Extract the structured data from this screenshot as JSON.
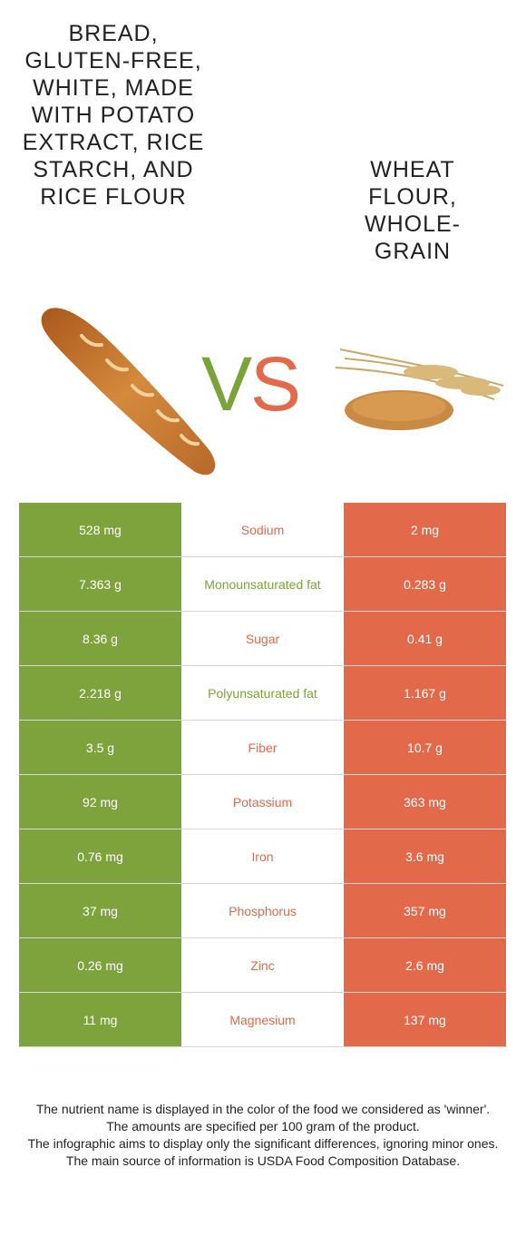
{
  "titles": {
    "left": "BREAD, GLUTEN-FREE, WHITE, MADE WITH POTATO EXTRACT, RICE STARCH, AND RICE FLOUR",
    "right": "WHEAT FLOUR, WHOLE-GRAIN"
  },
  "vs": {
    "v": "V",
    "s": "S"
  },
  "colors": {
    "left": "#7ea33c",
    "right": "#e2694a"
  },
  "rows": [
    {
      "left": "528 mg",
      "name": "Sodium",
      "right": "2 mg",
      "winner": "right"
    },
    {
      "left": "7.363 g",
      "name": "Monounsaturated fat",
      "right": "0.283 g",
      "winner": "left"
    },
    {
      "left": "8.36 g",
      "name": "Sugar",
      "right": "0.41 g",
      "winner": "right"
    },
    {
      "left": "2.218 g",
      "name": "Polyunsaturated fat",
      "right": "1.167 g",
      "winner": "left"
    },
    {
      "left": "3.5 g",
      "name": "Fiber",
      "right": "10.7 g",
      "winner": "right"
    },
    {
      "left": "92 mg",
      "name": "Potassium",
      "right": "363 mg",
      "winner": "right"
    },
    {
      "left": "0.76 mg",
      "name": "Iron",
      "right": "3.6 mg",
      "winner": "right"
    },
    {
      "left": "37 mg",
      "name": "Phosphorus",
      "right": "357 mg",
      "winner": "right"
    },
    {
      "left": "0.26 mg",
      "name": "Zinc",
      "right": "2.6 mg",
      "winner": "right"
    },
    {
      "left": "11 mg",
      "name": "Magnesium",
      "right": "137 mg",
      "winner": "right"
    }
  ],
  "footer": [
    "The nutrient name is displayed in the color of the food we considered as 'winner'.",
    "The amounts are specified per 100 gram of the product.",
    "The infographic aims to display only the significant differences, ignoring minor ones.",
    "The main source of information is USDA Food Composition Database."
  ]
}
